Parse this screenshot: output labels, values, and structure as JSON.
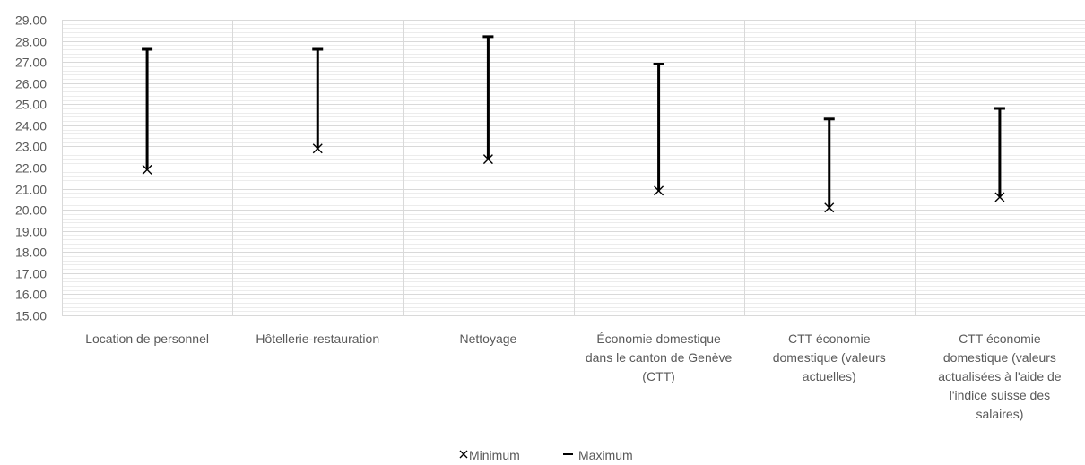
{
  "chart_data": {
    "type": "range",
    "categories": [
      [
        "Location de personnel"
      ],
      [
        "Hôtellerie-restauration"
      ],
      [
        "Nettoyage"
      ],
      [
        "Économie domestique",
        "dans le canton de Genève",
        "(CTT)"
      ],
      [
        "CTT économie",
        "domestique (valeurs",
        "actuelles)"
      ],
      [
        "CTT économie",
        "domestique (valeurs",
        "actualisées à l'aide de",
        "l'indice suisse des",
        "salaires)"
      ]
    ],
    "series": [
      {
        "name": "Minimum",
        "values": [
          21.9,
          22.9,
          22.4,
          20.9,
          20.1,
          20.6
        ]
      },
      {
        "name": "Maximum",
        "values": [
          27.6,
          27.6,
          28.2,
          26.9,
          24.3,
          24.8
        ]
      }
    ],
    "ylim": [
      15,
      29
    ],
    "ytick_step": 1,
    "ytick_format": "0.00",
    "grid": true,
    "legend_position": "bottom",
    "colors": {
      "bar": "#000000",
      "grid_major": "#d9d9d9",
      "grid_minor": "#ececec",
      "text": "#595959"
    }
  }
}
